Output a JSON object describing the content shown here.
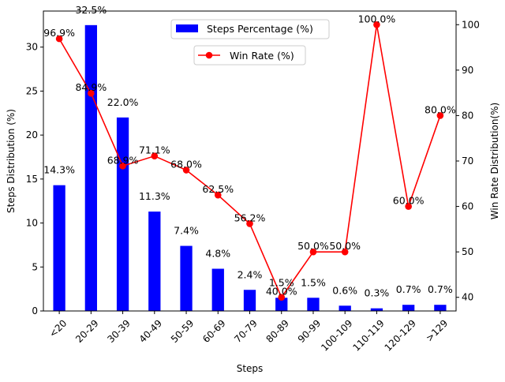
{
  "chart_data": {
    "type": "bar+line",
    "categories": [
      "<20",
      "20-29",
      "30-39",
      "40-49",
      "50-59",
      "60-69",
      "70-79",
      "80-89",
      "90-99",
      "100-109",
      "110-119",
      "120-129",
      ">129"
    ],
    "series": [
      {
        "name": "Steps Percentage (%)",
        "type": "bar",
        "axis": "left",
        "color": "#0000ff",
        "values": [
          14.3,
          32.5,
          22.0,
          11.3,
          7.4,
          4.8,
          2.4,
          1.5,
          1.5,
          0.6,
          0.3,
          0.7,
          0.7
        ],
        "labels": [
          "14.3%",
          "32.5%",
          "22.0%",
          "11.3%",
          "7.4%",
          "4.8%",
          "2.4%",
          "1.5%",
          "1.5%",
          "0.6%",
          "0.3%",
          "0.7%",
          "0.7%"
        ]
      },
      {
        "name": "Win Rate (%)",
        "type": "line",
        "axis": "right",
        "color": "#ff0000",
        "values": [
          96.9,
          84.9,
          68.9,
          71.1,
          68.0,
          62.5,
          56.2,
          40.0,
          50.0,
          50.0,
          100.0,
          60.0,
          80.0
        ],
        "labels": [
          "96.9%",
          "84.9%",
          "68.9%",
          "71.1%",
          "68.0%",
          "62.5%",
          "56.2%",
          "40.0%",
          "50.0%",
          "50.0%",
          "100.0%",
          "60.0%",
          "80.0%"
        ]
      }
    ],
    "xlabel": "Steps",
    "ylabel": "Steps Distribution (%)",
    "y2label": "Win Rate Distribution(%)",
    "ylim": [
      0,
      34.1
    ],
    "y2lim": [
      37.0,
      103.0
    ],
    "yticks": [
      0,
      5,
      10,
      15,
      20,
      25,
      30
    ],
    "y2ticks": [
      40,
      50,
      60,
      70,
      80,
      90,
      100
    ],
    "legend": [
      "top-center",
      "top-center"
    ]
  }
}
